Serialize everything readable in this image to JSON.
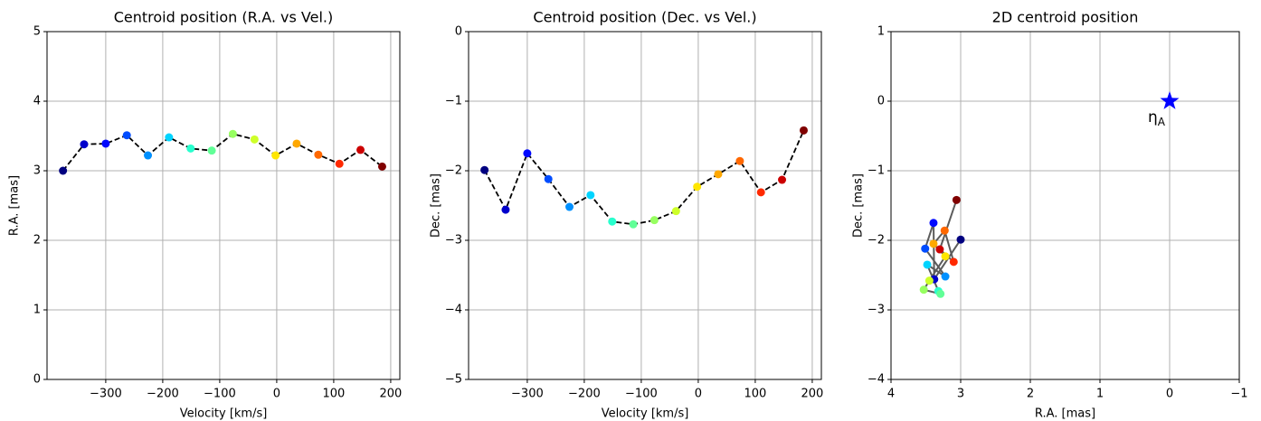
{
  "chart_data": [
    {
      "type": "line",
      "title": "Centroid position (R.A. vs Vel.)",
      "xlabel": "Velocity [km/s]",
      "ylabel": "R.A. [mas]",
      "x": [
        -375,
        -338,
        -300,
        -263,
        -226,
        -189,
        -151,
        -114,
        -77,
        -39,
        -2,
        35,
        73,
        110,
        147,
        185
      ],
      "values": [
        3.0,
        3.38,
        3.39,
        3.51,
        3.22,
        3.48,
        3.32,
        3.29,
        3.53,
        3.45,
        3.22,
        3.39,
        3.23,
        3.1,
        3.3,
        3.06
      ],
      "colors": [
        "#000080",
        "#0000cc",
        "#0008ff",
        "#004cff",
        "#0090ff",
        "#00d4ff",
        "#29ffce",
        "#61ff97",
        "#97ff61",
        "#ceff29",
        "#ffe600",
        "#ffa800",
        "#ff6800",
        "#ff2900",
        "#cc0000",
        "#800000"
      ],
      "line_color": "#000000",
      "line_style": "dashed",
      "xlim": [
        -403,
        216
      ],
      "ylim": [
        0,
        5
      ],
      "xticks": [
        {
          "value": -300,
          "label": "−300"
        },
        {
          "value": -200,
          "label": "−200"
        },
        {
          "value": -100,
          "label": "−100"
        },
        0,
        100,
        200
      ],
      "yticks": [
        0,
        1,
        2,
        3,
        4,
        5
      ],
      "grid": true
    },
    {
      "type": "line",
      "title": "Centroid position (Dec. vs Vel.)",
      "xlabel": "Velocity [km/s]",
      "ylabel": "Dec. [mas]",
      "x": [
        -375,
        -338,
        -300,
        -263,
        -226,
        -189,
        -151,
        -114,
        -77,
        -39,
        -2,
        35,
        73,
        110,
        147,
        185
      ],
      "values": [
        -1.99,
        -2.56,
        -1.75,
        -2.12,
        -2.52,
        -2.35,
        -2.73,
        -2.77,
        -2.71,
        -2.58,
        -2.23,
        -2.05,
        -1.86,
        -2.31,
        -2.13,
        -1.42
      ],
      "colors": [
        "#000080",
        "#0000cc",
        "#0008ff",
        "#004cff",
        "#0090ff",
        "#00d4ff",
        "#29ffce",
        "#61ff97",
        "#97ff61",
        "#ceff29",
        "#ffe600",
        "#ffa800",
        "#ff6800",
        "#ff2900",
        "#cc0000",
        "#800000"
      ],
      "line_color": "#000000",
      "line_style": "dashed",
      "xlim": [
        -403,
        216
      ],
      "ylim": [
        -5,
        0
      ],
      "xticks": [
        {
          "value": -300,
          "label": "−300"
        },
        {
          "value": -200,
          "label": "−200"
        },
        {
          "value": -100,
          "label": "−100"
        },
        0,
        100,
        200
      ],
      "yticks": [
        {
          "value": -5,
          "label": "−5"
        },
        {
          "value": -4,
          "label": "−4"
        },
        {
          "value": -3,
          "label": "−3"
        },
        {
          "value": -2,
          "label": "−2"
        },
        {
          "value": -1,
          "label": "−1"
        },
        0
      ],
      "grid": true
    },
    {
      "type": "scatter",
      "title": "2D centroid position",
      "xlabel": "R.A. [mas]",
      "ylabel": "Dec. [mas]",
      "x": [
        3.0,
        3.38,
        3.39,
        3.51,
        3.22,
        3.48,
        3.32,
        3.29,
        3.53,
        3.45,
        3.22,
        3.39,
        3.23,
        3.1,
        3.3,
        3.06
      ],
      "values": [
        -1.99,
        -2.56,
        -1.75,
        -2.12,
        -2.52,
        -2.35,
        -2.73,
        -2.77,
        -2.71,
        -2.58,
        -2.23,
        -2.05,
        -1.86,
        -2.31,
        -2.13,
        -1.42
      ],
      "colors": [
        "#000080",
        "#0000cc",
        "#0008ff",
        "#004cff",
        "#0090ff",
        "#00d4ff",
        "#29ffce",
        "#61ff97",
        "#97ff61",
        "#ceff29",
        "#ffe600",
        "#ffa800",
        "#ff6800",
        "#ff2900",
        "#cc0000",
        "#800000"
      ],
      "line_color": "#404040",
      "line_style": "solid",
      "star": {
        "x": 0,
        "y": 0,
        "color": "#0000ff",
        "label": "η",
        "subscript": "A"
      },
      "xlim": [
        4,
        -1
      ],
      "ylim": [
        -4,
        1
      ],
      "xticks": [
        4,
        3,
        2,
        1,
        0,
        {
          "value": -1,
          "label": "−1"
        }
      ],
      "yticks": [
        {
          "value": -4,
          "label": "−4"
        },
        {
          "value": -3,
          "label": "−3"
        },
        {
          "value": -2,
          "label": "−2"
        },
        {
          "value": -1,
          "label": "−1"
        },
        0,
        1
      ],
      "grid": true
    }
  ]
}
